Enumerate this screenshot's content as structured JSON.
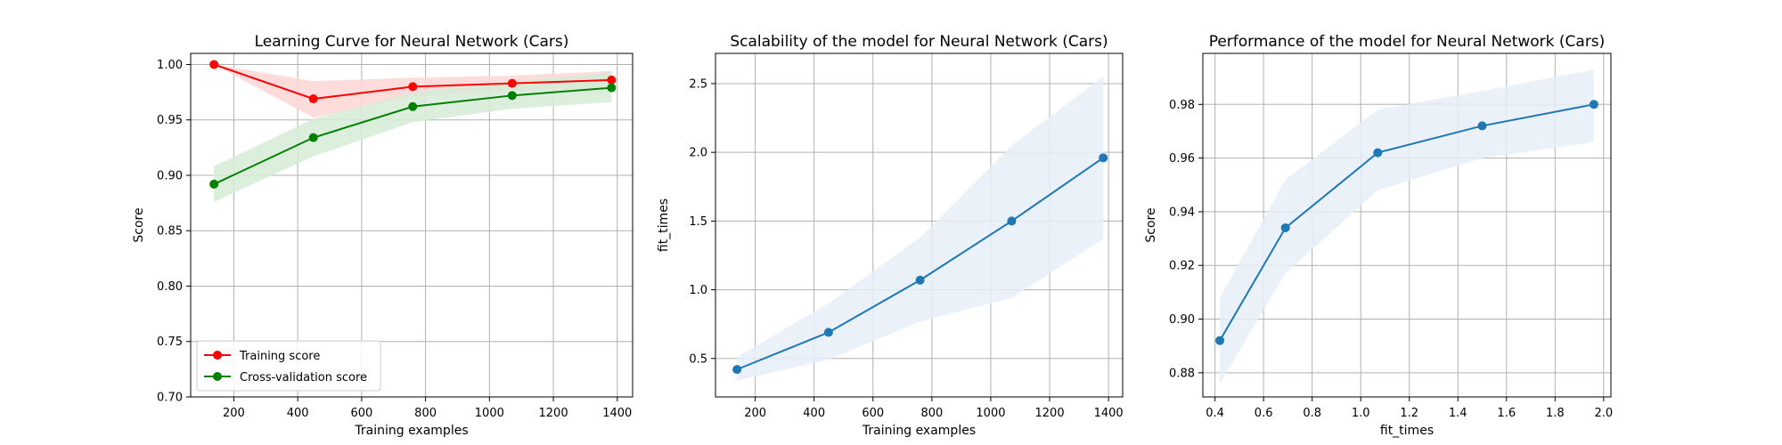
{
  "chart_data": [
    {
      "type": "line",
      "title": "Learning Curve for Neural Network (Cars)",
      "xlabel": "Training examples",
      "ylabel": "Score",
      "xlim": [
        65,
        1448
      ],
      "ylim": [
        0.7,
        1.01
      ],
      "xticks": [
        200,
        400,
        600,
        800,
        1000,
        1200,
        1400
      ],
      "yticks": [
        0.7,
        0.75,
        0.8,
        0.85,
        0.9,
        0.95,
        1.0
      ],
      "ytick_labels": [
        "0.70",
        "0.75",
        "0.80",
        "0.85",
        "0.90",
        "0.95",
        "1.00"
      ],
      "grid": true,
      "legend": "lower-left",
      "x": [
        138,
        449,
        760,
        1071,
        1382
      ],
      "series": [
        {
          "name": "Training score",
          "color": "#ff0000",
          "fill": "#ffd6d6",
          "values": [
            1.0,
            0.969,
            0.98,
            0.983,
            0.986
          ],
          "upper": [
            1.0,
            0.985,
            0.988,
            0.99,
            0.994
          ],
          "lower": [
            1.0,
            0.952,
            0.971,
            0.976,
            0.979
          ]
        },
        {
          "name": "Cross-validation score",
          "color": "#008000",
          "fill": "#d6ebd6",
          "values": [
            0.892,
            0.934,
            0.962,
            0.972,
            0.979
          ],
          "upper": [
            0.908,
            0.951,
            0.975,
            0.985,
            0.993
          ],
          "lower": [
            0.876,
            0.917,
            0.948,
            0.96,
            0.966
          ]
        }
      ]
    },
    {
      "type": "line",
      "title": "Scalability of the model for Neural Network (Cars)",
      "xlabel": "Training examples",
      "ylabel": "fit_times",
      "xlim": [
        65,
        1448
      ],
      "ylim": [
        0.22,
        2.72
      ],
      "xticks": [
        200,
        400,
        600,
        800,
        1000,
        1200,
        1400
      ],
      "yticks": [
        0.5,
        1.0,
        1.5,
        2.0,
        2.5
      ],
      "ytick_labels": [
        "0.5",
        "1.0",
        "1.5",
        "2.0",
        "2.5"
      ],
      "grid": true,
      "x": [
        138,
        449,
        760,
        1071,
        1382
      ],
      "series": [
        {
          "color": "#1f77b4",
          "fill": "#e6eff8",
          "values": [
            0.42,
            0.69,
            1.07,
            1.5,
            1.96
          ],
          "upper": [
            0.51,
            0.9,
            1.38,
            2.05,
            2.55
          ],
          "lower": [
            0.34,
            0.49,
            0.77,
            0.94,
            1.37
          ]
        }
      ]
    },
    {
      "type": "line",
      "title": "Performance of the model for Neural Network (Cars)",
      "xlabel": "fit_times",
      "ylabel": "Score",
      "xlim": [
        0.35,
        2.03
      ],
      "ylim": [
        0.871,
        0.999
      ],
      "xticks": [
        0.4,
        0.6,
        0.8,
        1.0,
        1.2,
        1.4,
        1.6,
        1.8,
        2.0
      ],
      "xtick_labels": [
        "0.4",
        "0.6",
        "0.8",
        "1.0",
        "1.2",
        "1.4",
        "1.6",
        "1.8",
        "2.0"
      ],
      "yticks": [
        0.88,
        0.9,
        0.92,
        0.94,
        0.96,
        0.98
      ],
      "ytick_labels": [
        "0.88",
        "0.90",
        "0.92",
        "0.94",
        "0.96",
        "0.98"
      ],
      "grid": true,
      "x": [
        0.42,
        0.69,
        1.07,
        1.5,
        1.96
      ],
      "series": [
        {
          "color": "#1f77b4",
          "fill": "#e6eff8",
          "values": [
            0.892,
            0.934,
            0.962,
            0.972,
            0.98
          ],
          "upper": [
            0.908,
            0.952,
            0.978,
            0.985,
            0.993
          ],
          "lower": [
            0.876,
            0.917,
            0.948,
            0.96,
            0.966
          ]
        }
      ]
    }
  ]
}
